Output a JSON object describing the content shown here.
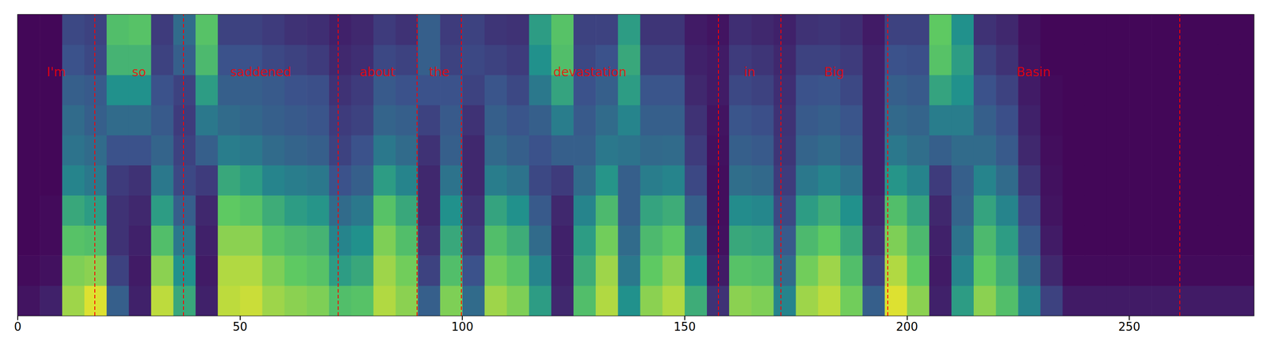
{
  "chart_data": {
    "type": "heatmap",
    "xlim": [
      0,
      278
    ],
    "xticks": [
      0,
      50,
      100,
      150,
      200,
      250
    ],
    "ylim": [
      0,
      80
    ],
    "tick_labels": "x",
    "grid": false,
    "value_range": [
      0,
      1
    ],
    "x_bins": [
      0,
      5,
      10,
      15,
      20,
      25,
      30,
      35,
      40,
      45,
      50,
      55,
      60,
      65,
      70,
      75,
      80,
      85,
      90,
      95,
      100,
      105,
      110,
      115,
      120,
      125,
      130,
      135,
      140,
      145,
      150,
      155,
      160,
      165,
      170,
      175,
      180,
      185,
      190,
      195,
      200,
      205,
      210,
      215,
      220,
      225,
      230,
      235,
      240,
      245,
      250,
      255,
      260,
      265,
      270,
      275,
      280
    ],
    "y_bins": [
      0,
      8,
      16,
      24,
      32,
      40,
      48,
      56,
      64,
      72,
      80
    ],
    "cells": [
      [
        0.06,
        0.03,
        0.02,
        0.02,
        0.02,
        0.02,
        0.02,
        0.02,
        0.02,
        0.02
      ],
      [
        0.1,
        0.05,
        0.03,
        0.03,
        0.02,
        0.02,
        0.02,
        0.02,
        0.02,
        0.02
      ],
      [
        0.85,
        0.8,
        0.72,
        0.6,
        0.45,
        0.38,
        0.35,
        0.3,
        0.25,
        0.22
      ],
      [
        0.95,
        0.82,
        0.7,
        0.55,
        0.4,
        0.35,
        0.3,
        0.28,
        0.22,
        0.2
      ],
      [
        0.3,
        0.2,
        0.15,
        0.15,
        0.18,
        0.25,
        0.35,
        0.5,
        0.65,
        0.7
      ],
      [
        0.1,
        0.08,
        0.1,
        0.12,
        0.15,
        0.25,
        0.35,
        0.5,
        0.65,
        0.72
      ],
      [
        0.9,
        0.82,
        0.7,
        0.55,
        0.4,
        0.32,
        0.28,
        0.25,
        0.2,
        0.18
      ],
      [
        0.6,
        0.5,
        0.4,
        0.3,
        0.22,
        0.2,
        0.18,
        0.2,
        0.3,
        0.35
      ],
      [
        0.1,
        0.08,
        0.1,
        0.12,
        0.18,
        0.3,
        0.4,
        0.55,
        0.68,
        0.72
      ],
      [
        0.9,
        0.88,
        0.82,
        0.75,
        0.6,
        0.42,
        0.35,
        0.3,
        0.25,
        0.2
      ],
      [
        0.92,
        0.88,
        0.82,
        0.72,
        0.55,
        0.4,
        0.33,
        0.3,
        0.25,
        0.2
      ],
      [
        0.85,
        0.8,
        0.72,
        0.62,
        0.45,
        0.35,
        0.3,
        0.28,
        0.22,
        0.18
      ],
      [
        0.82,
        0.75,
        0.68,
        0.55,
        0.42,
        0.32,
        0.28,
        0.25,
        0.2,
        0.15
      ],
      [
        0.8,
        0.72,
        0.65,
        0.52,
        0.4,
        0.3,
        0.26,
        0.24,
        0.18,
        0.14
      ],
      [
        0.7,
        0.55,
        0.45,
        0.35,
        0.25,
        0.2,
        0.18,
        0.15,
        0.12,
        0.1
      ],
      [
        0.72,
        0.6,
        0.5,
        0.4,
        0.3,
        0.25,
        0.2,
        0.18,
        0.14,
        0.12
      ],
      [
        0.88,
        0.85,
        0.8,
        0.72,
        0.55,
        0.4,
        0.32,
        0.28,
        0.22,
        0.18
      ],
      [
        0.82,
        0.78,
        0.7,
        0.6,
        0.45,
        0.35,
        0.3,
        0.25,
        0.2,
        0.15
      ],
      [
        0.3,
        0.2,
        0.15,
        0.12,
        0.12,
        0.15,
        0.2,
        0.25,
        0.3,
        0.3
      ],
      [
        0.8,
        0.7,
        0.6,
        0.5,
        0.38,
        0.3,
        0.28,
        0.25,
        0.2,
        0.18
      ],
      [
        0.35,
        0.25,
        0.18,
        0.15,
        0.12,
        0.12,
        0.15,
        0.2,
        0.22,
        0.2
      ],
      [
        0.85,
        0.78,
        0.7,
        0.58,
        0.42,
        0.34,
        0.3,
        0.26,
        0.2,
        0.16
      ],
      [
        0.8,
        0.72,
        0.62,
        0.5,
        0.38,
        0.3,
        0.26,
        0.22,
        0.18,
        0.15
      ],
      [
        0.55,
        0.45,
        0.35,
        0.28,
        0.22,
        0.25,
        0.3,
        0.4,
        0.5,
        0.55
      ],
      [
        0.12,
        0.1,
        0.1,
        0.12,
        0.18,
        0.3,
        0.42,
        0.58,
        0.7,
        0.72
      ],
      [
        0.7,
        0.62,
        0.55,
        0.45,
        0.35,
        0.3,
        0.28,
        0.25,
        0.22,
        0.2
      ],
      [
        0.88,
        0.85,
        0.78,
        0.68,
        0.52,
        0.4,
        0.35,
        0.3,
        0.25,
        0.2
      ],
      [
        0.5,
        0.4,
        0.35,
        0.3,
        0.3,
        0.38,
        0.45,
        0.55,
        0.6,
        0.55
      ],
      [
        0.82,
        0.75,
        0.68,
        0.58,
        0.42,
        0.34,
        0.3,
        0.26,
        0.2,
        0.16
      ],
      [
        0.88,
        0.82,
        0.74,
        0.62,
        0.45,
        0.35,
        0.3,
        0.26,
        0.2,
        0.16
      ],
      [
        0.62,
        0.5,
        0.4,
        0.3,
        0.22,
        0.18,
        0.15,
        0.12,
        0.1,
        0.08
      ],
      [
        0.15,
        0.08,
        0.05,
        0.04,
        0.04,
        0.05,
        0.06,
        0.08,
        0.08,
        0.06
      ],
      [
        0.82,
        0.72,
        0.6,
        0.48,
        0.36,
        0.3,
        0.26,
        0.22,
        0.18,
        0.14
      ],
      [
        0.8,
        0.7,
        0.58,
        0.46,
        0.34,
        0.28,
        0.24,
        0.2,
        0.16,
        0.12
      ],
      [
        0.45,
        0.35,
        0.28,
        0.22,
        0.18,
        0.16,
        0.15,
        0.14,
        0.12,
        0.1
      ],
      [
        0.85,
        0.78,
        0.68,
        0.55,
        0.4,
        0.32,
        0.28,
        0.25,
        0.2,
        0.15
      ],
      [
        0.9,
        0.85,
        0.75,
        0.62,
        0.45,
        0.35,
        0.3,
        0.26,
        0.2,
        0.16
      ],
      [
        0.78,
        0.7,
        0.6,
        0.5,
        0.38,
        0.3,
        0.26,
        0.22,
        0.18,
        0.14
      ],
      [
        0.3,
        0.2,
        0.15,
        0.12,
        0.1,
        0.1,
        0.1,
        0.1,
        0.1,
        0.08
      ],
      [
        0.95,
        0.88,
        0.8,
        0.7,
        0.52,
        0.4,
        0.34,
        0.3,
        0.25,
        0.2
      ],
      [
        0.82,
        0.75,
        0.68,
        0.58,
        0.45,
        0.36,
        0.32,
        0.28,
        0.24,
        0.2
      ],
      [
        0.1,
        0.08,
        0.1,
        0.12,
        0.18,
        0.3,
        0.42,
        0.58,
        0.72,
        0.75
      ],
      [
        0.55,
        0.45,
        0.38,
        0.32,
        0.3,
        0.35,
        0.42,
        0.5,
        0.55,
        0.5
      ],
      [
        0.82,
        0.75,
        0.68,
        0.58,
        0.45,
        0.35,
        0.3,
        0.25,
        0.2,
        0.15
      ],
      [
        0.7,
        0.62,
        0.55,
        0.45,
        0.35,
        0.28,
        0.24,
        0.2,
        0.15,
        0.12
      ],
      [
        0.45,
        0.35,
        0.28,
        0.22,
        0.16,
        0.12,
        0.1,
        0.08,
        0.06,
        0.05
      ],
      [
        0.2,
        0.12,
        0.08,
        0.06,
        0.05,
        0.04,
        0.03,
        0.03,
        0.02,
        0.02
      ],
      [
        0.08,
        0.03,
        0.02,
        0.02,
        0.02,
        0.02,
        0.02,
        0.02,
        0.02,
        0.02
      ],
      [
        0.08,
        0.03,
        0.02,
        0.02,
        0.02,
        0.02,
        0.02,
        0.02,
        0.02,
        0.02
      ],
      [
        0.08,
        0.03,
        0.02,
        0.02,
        0.02,
        0.02,
        0.02,
        0.02,
        0.02,
        0.02
      ],
      [
        0.08,
        0.03,
        0.02,
        0.02,
        0.02,
        0.02,
        0.02,
        0.02,
        0.02,
        0.02
      ],
      [
        0.08,
        0.03,
        0.02,
        0.02,
        0.02,
        0.02,
        0.02,
        0.02,
        0.02,
        0.02
      ],
      [
        0.08,
        0.03,
        0.02,
        0.02,
        0.02,
        0.02,
        0.02,
        0.02,
        0.02,
        0.02
      ],
      [
        0.08,
        0.03,
        0.02,
        0.02,
        0.02,
        0.02,
        0.02,
        0.02,
        0.02,
        0.02
      ],
      [
        0.08,
        0.03,
        0.02,
        0.02,
        0.02,
        0.02,
        0.02,
        0.02,
        0.02,
        0.02
      ],
      [
        0.08,
        0.03,
        0.02,
        0.02,
        0.02,
        0.02,
        0.02,
        0.02,
        0.02,
        0.02
      ]
    ],
    "words": [
      {
        "text": "I'm",
        "start": 0,
        "end": 17.3
      },
      {
        "text": "so",
        "start": 17.3,
        "end": 37.3
      },
      {
        "text": "saddened",
        "start": 37.3,
        "end": 72
      },
      {
        "text": "about",
        "start": 72,
        "end": 89.8
      },
      {
        "text": "the",
        "start": 89.8,
        "end": 99.8
      },
      {
        "text": "devastation",
        "start": 99.8,
        "end": 157.6
      },
      {
        "text": "in",
        "start": 157.6,
        "end": 171.6
      },
      {
        "text": "Big",
        "start": 171.6,
        "end": 195.6
      },
      {
        "text": "Basin",
        "start": 195.6,
        "end": 261.3
      }
    ]
  }
}
